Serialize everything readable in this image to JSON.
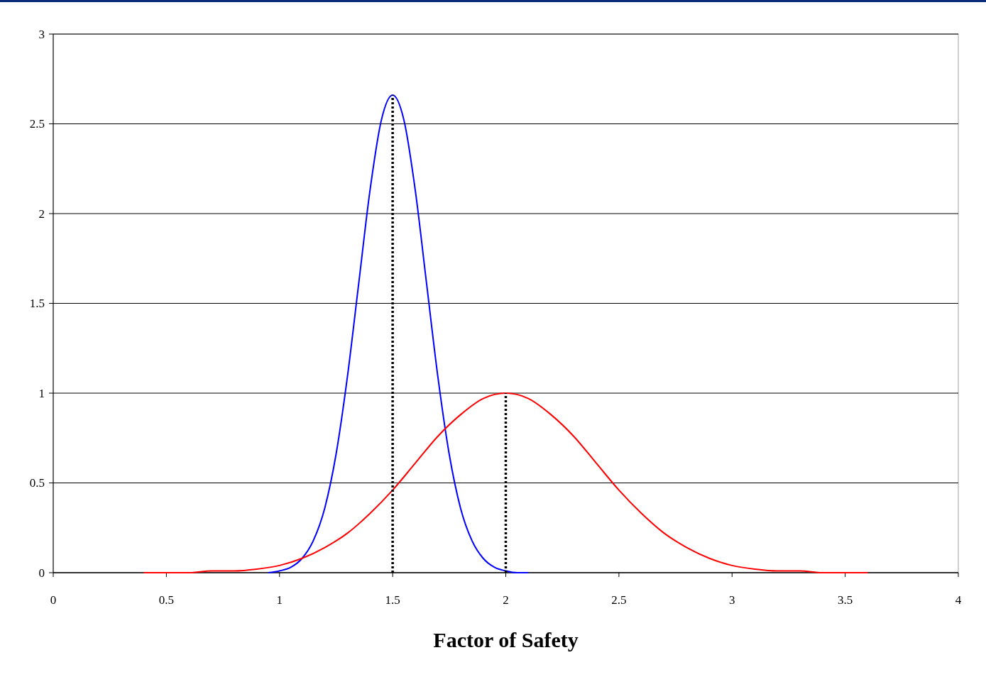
{
  "chart_data": {
    "type": "line",
    "xlabel": "Factor of Safety",
    "xlim": [
      0,
      4
    ],
    "xticks": [
      0,
      0.5,
      1,
      1.5,
      2,
      2.5,
      3,
      3.5,
      4
    ],
    "ylim": [
      0,
      3
    ],
    "yticks": [
      0,
      0.5,
      1,
      1.5,
      2,
      2.5,
      3
    ],
    "grid": "y",
    "marker": "none",
    "series": [
      {
        "color": "#0000ff",
        "x": [
          0.95,
          1.0,
          1.05,
          1.1,
          1.15,
          1.2,
          1.25,
          1.3,
          1.35,
          1.4,
          1.45,
          1.5,
          1.55,
          1.6,
          1.65,
          1.7,
          1.75,
          1.8,
          1.85,
          1.9,
          1.95,
          2.0,
          2.05,
          2.1
        ],
        "values": [
          0,
          0.01,
          0.03,
          0.08,
          0.18,
          0.36,
          0.66,
          1.09,
          1.61,
          2.13,
          2.52,
          2.66,
          2.52,
          2.13,
          1.61,
          1.09,
          0.66,
          0.36,
          0.18,
          0.08,
          0.03,
          0.01,
          0,
          0
        ]
      },
      {
        "color": "#ff0000",
        "x": [
          0.4,
          0.5,
          0.6,
          0.7,
          0.8,
          0.9,
          1.0,
          1.1,
          1.2,
          1.3,
          1.4,
          1.5,
          1.6,
          1.7,
          1.8,
          1.9,
          2.0,
          2.1,
          2.2,
          2.3,
          2.4,
          2.5,
          2.6,
          2.7,
          2.8,
          2.9,
          3.0,
          3.1,
          3.2,
          3.3,
          3.4,
          3.5,
          3.6
        ],
        "values": [
          0,
          0,
          0,
          0.01,
          0.01,
          0.02,
          0.04,
          0.08,
          0.14,
          0.22,
          0.33,
          0.46,
          0.61,
          0.76,
          0.88,
          0.97,
          1.0,
          0.97,
          0.88,
          0.76,
          0.61,
          0.46,
          0.33,
          0.22,
          0.14,
          0.08,
          0.04,
          0.02,
          0.01,
          0.01,
          0,
          0,
          0
        ]
      },
      {
        "color": "#000000",
        "line_style": "dotted",
        "x": [
          1.5,
          1.5
        ],
        "values": [
          0,
          2.66
        ]
      },
      {
        "color": "#000000",
        "line_style": "dotted",
        "x": [
          2,
          2
        ],
        "values": [
          0,
          1.0
        ]
      }
    ]
  }
}
